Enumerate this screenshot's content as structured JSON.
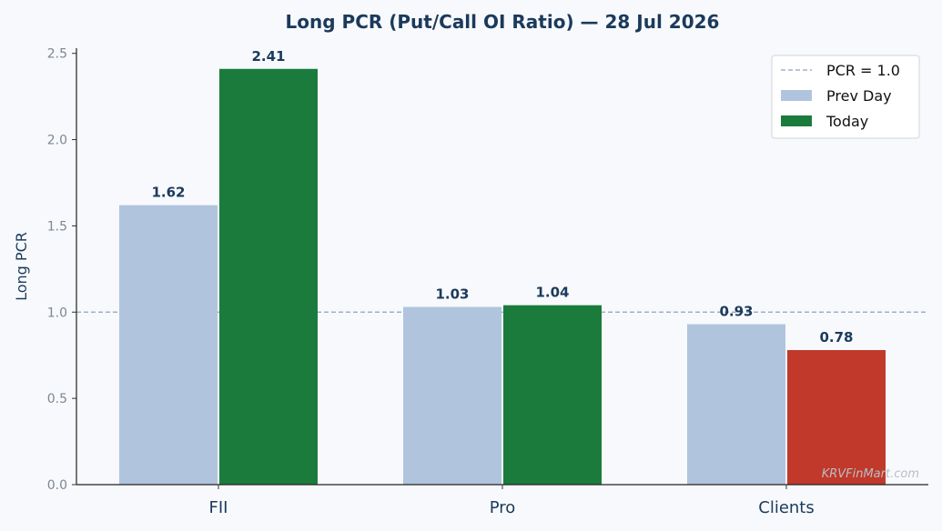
{
  "chart_data": {
    "type": "bar",
    "title": "Long PCR (Put/Call OI Ratio) — 28 Jul 2026",
    "xlabel": "",
    "ylabel": "Long PCR",
    "categories": [
      "FII",
      "Pro",
      "Clients"
    ],
    "series": [
      {
        "name": "Prev Day",
        "values": [
          1.62,
          1.03,
          0.93
        ],
        "labels": [
          "1.62",
          "1.03",
          "0.93"
        ],
        "color": "#b0c4de"
      },
      {
        "name": "Today",
        "values": [
          2.41,
          1.04,
          0.78
        ],
        "labels": [
          "2.41",
          "1.04",
          "0.78"
        ],
        "colors": [
          "#1b7b3c",
          "#1b7b3c",
          "#c0392b"
        ]
      }
    ],
    "ylim": [
      0,
      2.53
    ],
    "yticks": [
      0.0,
      0.5,
      1.0,
      1.5,
      2.0,
      2.5
    ],
    "ytick_labels": [
      "0.0",
      "0.5",
      "1.0",
      "1.5",
      "2.0",
      "2.5"
    ],
    "reference_line": {
      "y": 1.0,
      "label": "PCR = 1.0",
      "color": "#8fa1bd"
    },
    "legend": {
      "placement": "top-right"
    },
    "grid": false,
    "watermark": "KRVFinMart.com"
  }
}
